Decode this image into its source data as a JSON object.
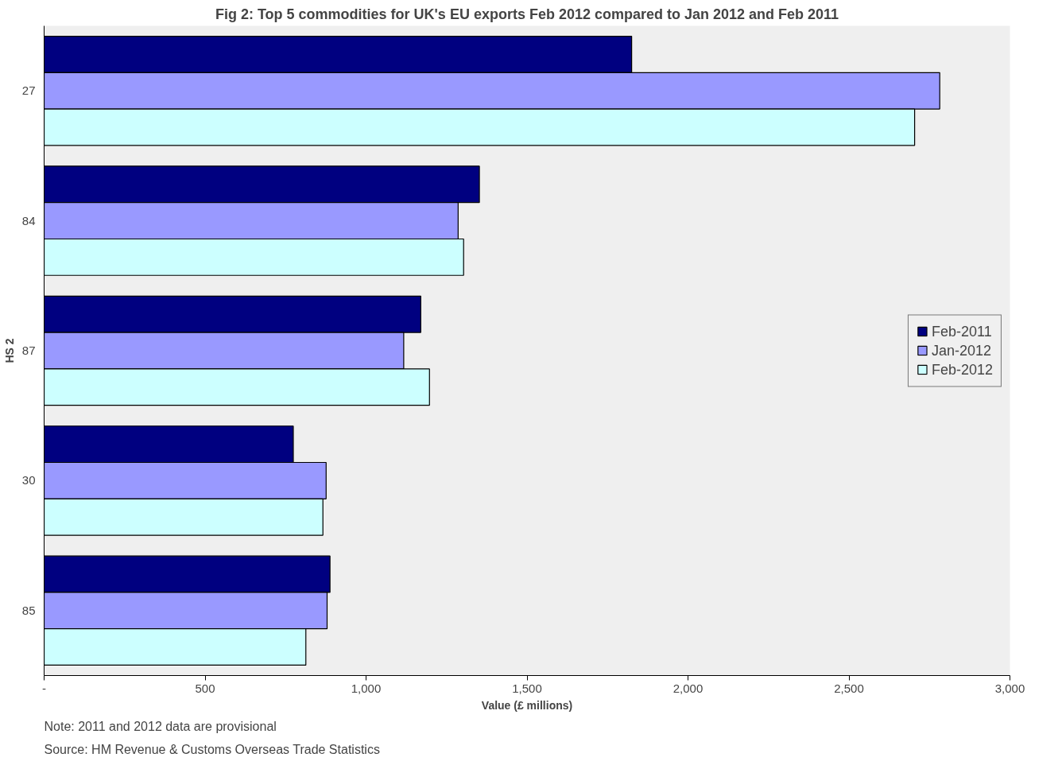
{
  "chart_data": {
    "type": "bar",
    "orientation": "horizontal",
    "title": "Fig 2: Top 5 commodities for UK's EU exports Feb 2012 compared to Jan 2012 and Feb 2011",
    "xlabel": "Value (£ millions)",
    "ylabel": "HS 2",
    "categories": [
      "27",
      "84",
      "87",
      "30",
      "85"
    ],
    "series": [
      {
        "name": "Feb-2011",
        "color": "#000080",
        "values": [
          1825,
          1352,
          1170,
          774,
          888
        ]
      },
      {
        "name": "Jan-2012",
        "color": "#9999ff",
        "values": [
          2782,
          1286,
          1117,
          876,
          879
        ]
      },
      {
        "name": "Feb-2012",
        "color": "#ccffff",
        "values": [
          2704,
          1303,
          1197,
          866,
          813
        ]
      }
    ],
    "xlim": [
      0,
      3000
    ],
    "xticks": [
      {
        "value": 0,
        "label": "-"
      },
      {
        "value": 500,
        "label": "500"
      },
      {
        "value": 1000,
        "label": "1,000"
      },
      {
        "value": 1500,
        "label": "1,500"
      },
      {
        "value": 2000,
        "label": "2,000"
      },
      {
        "value": 2500,
        "label": "2,500"
      },
      {
        "value": 3000,
        "label": "3,000"
      }
    ],
    "grid": false,
    "legend": "right",
    "annotations": [
      "Note: 2011 and 2012 data are provisional",
      "Source: HM Revenue & Customs Overseas Trade Statistics"
    ]
  }
}
